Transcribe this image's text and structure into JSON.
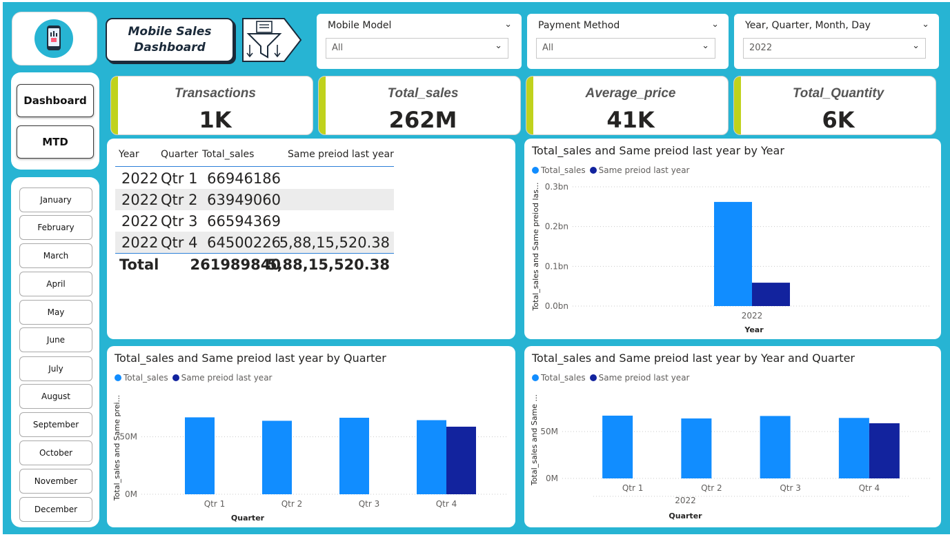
{
  "title": {
    "line1": "Mobile Sales",
    "line2": "Dashboard"
  },
  "icons": {
    "logo": "phone-sales-icon",
    "filter": "funnel-filter-icon"
  },
  "colors": {
    "background": "#27b4d3",
    "series1": "#118dff",
    "series2": "#12239e",
    "kpi_accent": "#c0d21c"
  },
  "filters": [
    {
      "label": "Mobile Model",
      "value": "All"
    },
    {
      "label": "Payment Method",
      "value": "All"
    },
    {
      "label": "Year, Quarter, Month, Day",
      "value": "2022"
    }
  ],
  "nav": {
    "dashboard": "Dashboard",
    "mtd": "MTD"
  },
  "months": [
    "January",
    "February",
    "March",
    "April",
    "May",
    "June",
    "July",
    "August",
    "September",
    "October",
    "November",
    "December"
  ],
  "kpis": [
    {
      "label": "Transactions",
      "value": "1K"
    },
    {
      "label": "Total_sales",
      "value": "262M"
    },
    {
      "label": "Average_price",
      "value": "41K"
    },
    {
      "label": "Total_Quantity",
      "value": "6K"
    }
  ],
  "table": {
    "headers": [
      "Year",
      "Quarter",
      "Total_sales",
      "Same preiod last year"
    ],
    "rows": [
      [
        "2022",
        "Qtr 1",
        "66946186",
        ""
      ],
      [
        "2022",
        "Qtr 2",
        "63949060",
        ""
      ],
      [
        "2022",
        "Qtr 3",
        "66594369",
        ""
      ],
      [
        "2022",
        "Qtr 4",
        "64500226",
        "5,88,15,520.38"
      ]
    ],
    "total": {
      "label": "Total",
      "total_sales": "261989840",
      "same_period": "5,88,15,520.38"
    }
  },
  "chart_data": [
    {
      "type": "bar",
      "title": "Total_sales and Same preiod last year by Year",
      "xlabel": "Year",
      "ylabel": "Total_sales and Same preiod las...",
      "categories": [
        "2022"
      ],
      "series": [
        {
          "name": "Total_sales",
          "values": [
            261989840
          ]
        },
        {
          "name": "Same preiod last year",
          "values": [
            58815520.38
          ]
        }
      ],
      "yticks": [
        "0.0bn",
        "0.1bn",
        "0.2bn",
        "0.3bn"
      ],
      "ylim": [
        0,
        300000000
      ],
      "legend": "top-left",
      "grid": true
    },
    {
      "type": "bar",
      "title": "Total_sales and Same preiod last year by Quarter",
      "xlabel": "Quarter",
      "ylabel": "Total_sales and Same prei...",
      "categories": [
        "Qtr 1",
        "Qtr 2",
        "Qtr 3",
        "Qtr 4"
      ],
      "series": [
        {
          "name": "Total_sales",
          "values": [
            66946186,
            63949060,
            66594369,
            64500226
          ]
        },
        {
          "name": "Same preiod last year",
          "values": [
            null,
            null,
            null,
            58815520.38
          ]
        }
      ],
      "yticks": [
        "0M",
        "50M"
      ],
      "ylim": [
        0,
        75000000
      ],
      "legend": "top-left",
      "grid": true
    },
    {
      "type": "bar",
      "title": "Total_sales and Same preiod last year by Year and Quarter",
      "xlabel": "Quarter",
      "group_label": "2022",
      "ylabel": "Total_sales and Same ...",
      "categories": [
        "Qtr 1",
        "Qtr 2",
        "Qtr 3",
        "Qtr 4"
      ],
      "series": [
        {
          "name": "Total_sales",
          "values": [
            66946186,
            63949060,
            66594369,
            64500226
          ]
        },
        {
          "name": "Same preiod last year",
          "values": [
            null,
            null,
            null,
            58815520.38
          ]
        }
      ],
      "yticks": [
        "0M",
        "50M"
      ],
      "ylim": [
        0,
        75000000
      ],
      "legend": "top-left",
      "grid": true
    }
  ]
}
